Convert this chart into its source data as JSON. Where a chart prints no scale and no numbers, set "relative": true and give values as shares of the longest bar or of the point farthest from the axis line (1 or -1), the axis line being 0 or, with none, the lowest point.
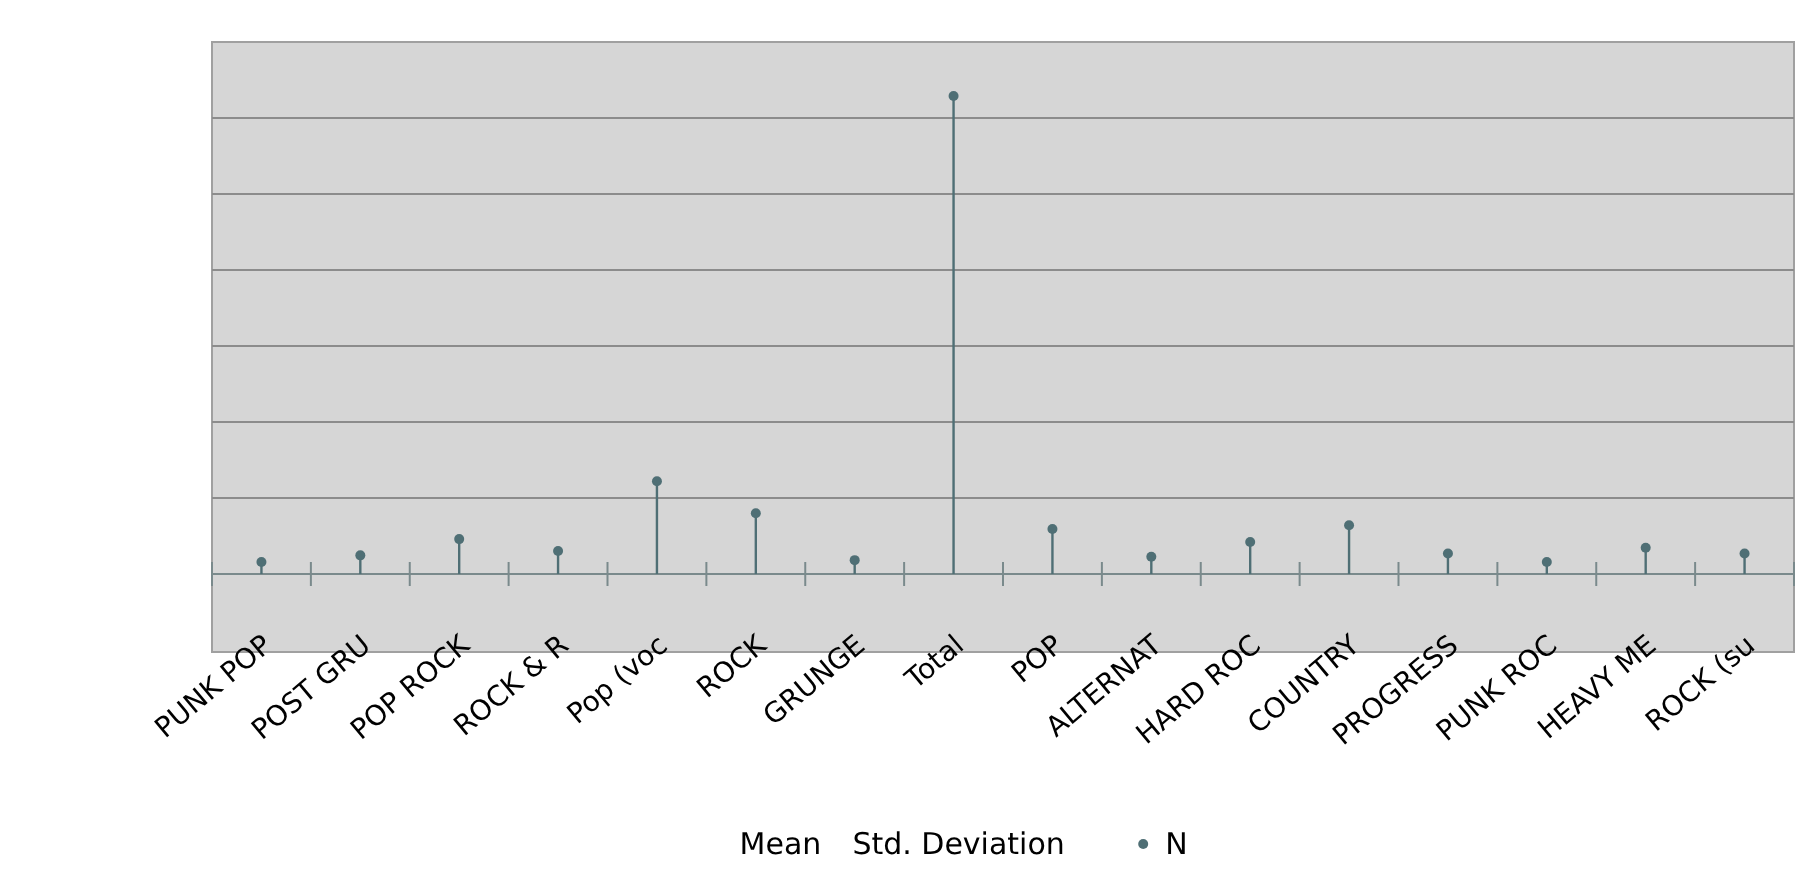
{
  "chart_data": {
    "type": "lollipop",
    "relative": true,
    "grid": true,
    "legend": "bottom",
    "marker": "circle",
    "categories": [
      "PUNK POP",
      "POST GRU",
      "POP ROCK",
      "ROCK & R",
      "Pop (voc",
      "ROCK",
      "GRUNGE",
      "Total",
      "POP",
      "ALTERNAT",
      "HARD ROC",
      "COUNTRY",
      "PROGRESS",
      "PUNK ROC",
      "HEAVY ME",
      "ROCK (su"
    ],
    "series": [
      {
        "name": "Mean",
        "values": [
          null,
          null,
          null,
          null,
          null,
          null,
          null,
          null,
          null,
          null,
          null,
          null,
          null,
          null,
          null,
          null
        ]
      },
      {
        "name": "Std. Deviation",
        "values": [
          null,
          null,
          null,
          null,
          null,
          null,
          null,
          null,
          null,
          null,
          null,
          null,
          null,
          null,
          null,
          null
        ]
      },
      {
        "name": "N",
        "color": "#4f6f75",
        "values": [
          0.025,
          0.039,
          0.073,
          0.048,
          0.194,
          0.127,
          0.029,
          1,
          0.094,
          0.036,
          0.067,
          0.102,
          0.043,
          0.025,
          0.055,
          0.043
        ]
      }
    ]
  }
}
